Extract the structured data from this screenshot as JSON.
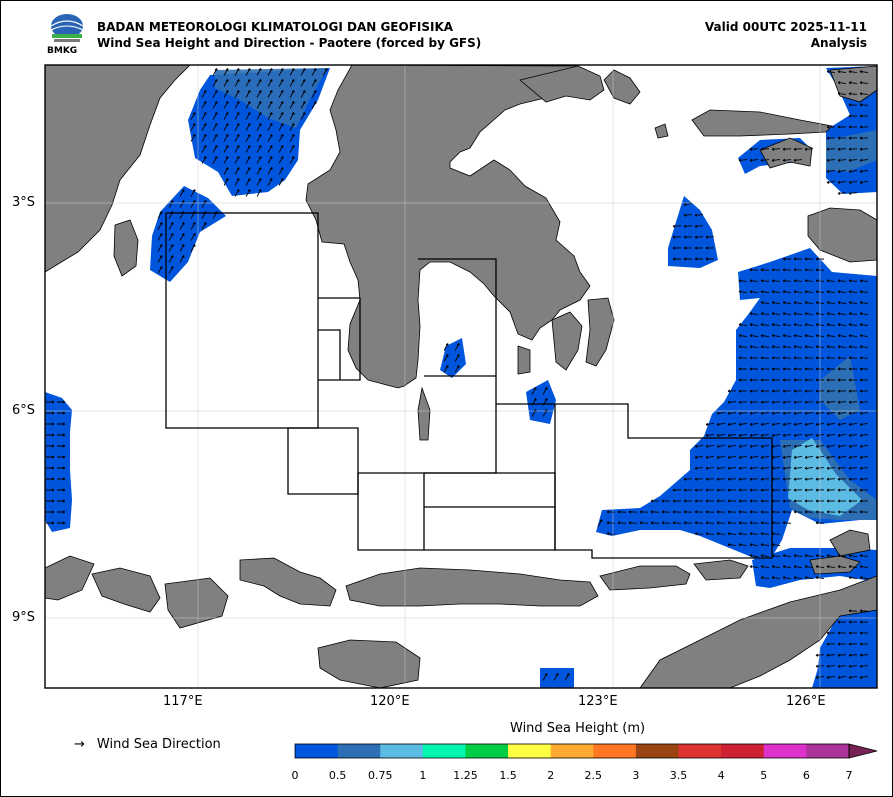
{
  "header": {
    "agency": "BADAN METEOROLOGI KLIMATOLOGI DAN GEOFISIKA",
    "subtitle": "Wind Sea Height and Direction - Paotere (forced by GFS)",
    "valid": "Valid 00UTC 2025-11-11",
    "mode": "Analysis",
    "logo_text": "BMKG"
  },
  "map": {
    "lon_range": [
      115,
      127
    ],
    "lat_range": [
      -10,
      -1
    ],
    "lon_ticks": [
      {
        "value": 117,
        "label": "117°E"
      },
      {
        "value": 120,
        "label": "120°E"
      },
      {
        "value": 123,
        "label": "123°E"
      },
      {
        "value": 126,
        "label": "126°E"
      }
    ],
    "lat_ticks": [
      {
        "value": -3,
        "label": "3°S"
      },
      {
        "value": -6,
        "label": "6°S"
      },
      {
        "value": -9,
        "label": "9°S"
      }
    ],
    "gridlines": true,
    "colors": {
      "land": "#808080",
      "coast": "#000000",
      "sea": "#ffffff",
      "wave_0_0.5": "#0055dd",
      "wave_0.5_0.75": "#2d6fb5",
      "wave_0.75_1": "#5bbbe3"
    }
  },
  "legend": {
    "direction_label": "Wind Sea Direction",
    "direction_icon": "arrow-right-icon",
    "colorbar_title": "Wind Sea Height (m)",
    "colorbar": [
      {
        "label": "0",
        "color": "#0055dd"
      },
      {
        "label": "0.5",
        "color": "#2d6fb5"
      },
      {
        "label": "0.75",
        "color": "#5bbbe3"
      },
      {
        "label": "1",
        "color": "#00f5b0"
      },
      {
        "label": "1.25",
        "color": "#00cc44"
      },
      {
        "label": "1.5",
        "color": "#ffff44"
      },
      {
        "label": "2",
        "color": "#ffaa33"
      },
      {
        "label": "2.5",
        "color": "#ff7722"
      },
      {
        "label": "3",
        "color": "#994411"
      },
      {
        "label": "3.5",
        "color": "#dd3333"
      },
      {
        "label": "4",
        "color": "#cc2233"
      },
      {
        "label": "5",
        "color": "#dd33cc"
      },
      {
        "label": "6",
        "color": "#aa3399"
      },
      {
        "label": "7",
        "color": "#772255"
      }
    ]
  }
}
